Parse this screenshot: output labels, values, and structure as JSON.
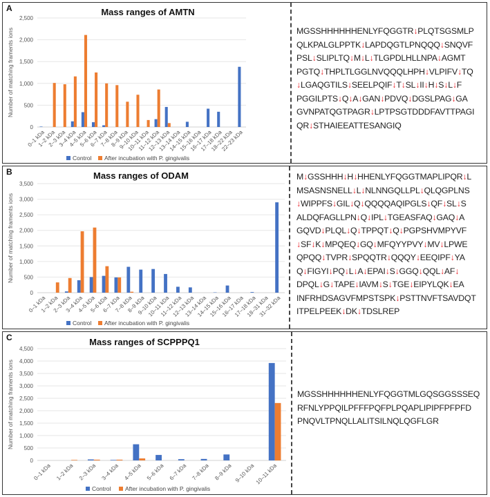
{
  "chart_data": [
    {
      "panel_label": "A",
      "type": "bar",
      "title": "Mass ranges of AMTN",
      "ylabel": "Number of matching framents ions",
      "ylim": [
        0,
        2500
      ],
      "yticks": [
        "0",
        "500",
        "1,000",
        "1,500",
        "2,000",
        "2,500"
      ],
      "grid": true,
      "legend_position": "bottom",
      "categories": [
        "0–1 kDa",
        "1–2 kDa",
        "2–3 kDa",
        "3–4 kDa",
        "4–5 kDa",
        "5–6 kDa",
        "6–7 kDa",
        "7–8 kDa",
        "8–9 kDa",
        "9–10 kDa",
        "10–11 kDa",
        "11–12 kDa",
        "12–13 kDa",
        "13–14 kDa",
        "14–15 kDa",
        "15–16 kDa",
        "16–17 kDa",
        "17–18 kDa",
        "18–22 kDa",
        "22–23 kDa"
      ],
      "series": [
        {
          "name": "Control",
          "color": "#4472c4",
          "values": [
            10,
            0,
            0,
            130,
            340,
            110,
            40,
            0,
            0,
            0,
            0,
            180,
            460,
            0,
            120,
            0,
            420,
            350,
            0,
            1380
          ]
        },
        {
          "name": "After incubation with P. gingivalis",
          "color": "#ed7d31",
          "values": [
            0,
            1010,
            980,
            1160,
            2110,
            1250,
            1000,
            960,
            580,
            740,
            160,
            860,
            90,
            0,
            0,
            0,
            0,
            0,
            0,
            0
          ]
        }
      ]
    },
    {
      "panel_label": "B",
      "type": "bar",
      "title": "Mass ranges of ODAM",
      "ylabel": "Number of matching framents ions",
      "ylim": [
        0,
        3500
      ],
      "yticks": [
        "0",
        "500",
        "1,000",
        "1,500",
        "2,000",
        "2,500",
        "3,000",
        "3,500"
      ],
      "grid": true,
      "legend_position": "bottom",
      "categories": [
        "0–1 kDa",
        "1–2 kDa",
        "2–3 kDa",
        "3–4 kDa",
        "4–5 kDa",
        "5–6 kDa",
        "6–7 kDa",
        "7–8 kDa",
        "8–9 kDa",
        "9–10 kDa",
        "10–11 kDa",
        "11–12 kDa",
        "12–13 kDa",
        "13–14 kDa",
        "14–15 kDa",
        "15–16 kDa",
        "16–17 kDa",
        "17–18 kDa",
        "18–31 kDa",
        "31–32 kDa"
      ],
      "series": [
        {
          "name": "Control",
          "color": "#4472c4",
          "values": [
            0,
            0,
            40,
            400,
            500,
            540,
            490,
            830,
            740,
            760,
            600,
            190,
            170,
            0,
            10,
            230,
            0,
            20,
            0,
            2900
          ]
        },
        {
          "name": "After incubation with P. gingivalis",
          "color": "#ed7d31",
          "values": [
            0,
            330,
            470,
            1970,
            2090,
            850,
            490,
            30,
            0,
            0,
            0,
            0,
            0,
            0,
            0,
            0,
            0,
            0,
            0,
            0
          ]
        }
      ]
    },
    {
      "panel_label": "C",
      "type": "bar",
      "title": "Mass ranges of SCPPPQ1",
      "ylabel": "Number of matching framents ions",
      "ylim": [
        0,
        4500
      ],
      "yticks": [
        "0",
        "500",
        "1,000",
        "1,500",
        "2,000",
        "2,500",
        "3,000",
        "3,500",
        "4,000",
        "4,500"
      ],
      "grid": true,
      "legend_position": "bottom",
      "categories": [
        "0–1 kDa",
        "1–2 kDa",
        "2–3 kDa",
        "3–4 kDa",
        "4–5 kDa",
        "5–6 kDa",
        "6–7 kDa",
        "7–8 kDa",
        "8–9 kDa",
        "9–10 kDa",
        "10–11 kDa"
      ],
      "series": [
        {
          "name": "Control",
          "color": "#4472c4",
          "values": [
            0,
            0,
            40,
            20,
            650,
            220,
            50,
            60,
            240,
            0,
            3920
          ]
        },
        {
          "name": "After incubation with P. gingivalis",
          "color": "#ed7d31",
          "values": [
            0,
            20,
            30,
            30,
            80,
            0,
            0,
            0,
            0,
            0,
            2310
          ]
        }
      ]
    }
  ],
  "sequences": [
    {
      "lines": [
        "MGSSHHHHHHENLYFQGGTR↓PLQTSGSMLP",
        "QLKPALGLPPTK↓LAPDQGTLPNQQQ↓SNQVF",
        "PSL↓SLIPLTQ↓M↓L↓TLGPDLHLLNPA↓AGMT",
        "PGTQ↓THPLTLGGLNVQQQLHPH↓VLPIFV↓TQ",
        "↓LGAQGTILS↓SEELPQIF↓T↓SL↓II↓H↓S↓L↓F",
        "PGGILPTS↓Q↓A↓GAN↓PDVQ↓DGSLPAG↓GA",
        "GVNPATQGTPAGR↓LPTPSGTDDDFAVTTPAGI",
        "QR↓STHAIEEATTESANGIQ"
      ]
    },
    {
      "lines": [
        "M↓GSSHHH↓H↓HHENLYFQGGTMAPLIPQR↓L",
        "MSASNSNELL↓L↓NLNNGQLLPL↓QLQGPLNS",
        "↓WIPPFS↓GIL↓Q↓QQQQAQIPGLS↓QF↓SL↓S",
        "ALDQFAGLLPN↓Q↓IPL↓TGEASFAQ↓GAQ↓A",
        "GQVD↓PLQL↓Q↓TPPQT↓Q↓PGPSHVMPYVF",
        "↓SF↓K↓MPQEQ↓GQ↓MFQYYPVY↓MV↓LPWE",
        "QPQQ↓TVPR↓SPQQTR↓QQQY↓EEQIPF↓YA",
        "Q↓FIGYI↓PQ↓L↓A↓EPAI↓S↓GGQ↓QQL↓AF↓",
        "DPQL↓G↓TAPE↓IAVM↓S↓TGE↓EIPYLQK↓EA",
        "INFRHDSAGVFMPSTSPK↓PSTTNVFTSAVDQT",
        "ITPELPEEK↓DK↓TDSLREP"
      ]
    },
    {
      "lines": [
        "MGSSHHHHHHENLYFQGGTMLGQSGGSSSEQ",
        "RFNLYPPQILPFFFPQFPLPQAPLIPIPFPFPFD",
        "PNQVLTPNQLLALITSILNQLQGFLGR"
      ]
    }
  ]
}
